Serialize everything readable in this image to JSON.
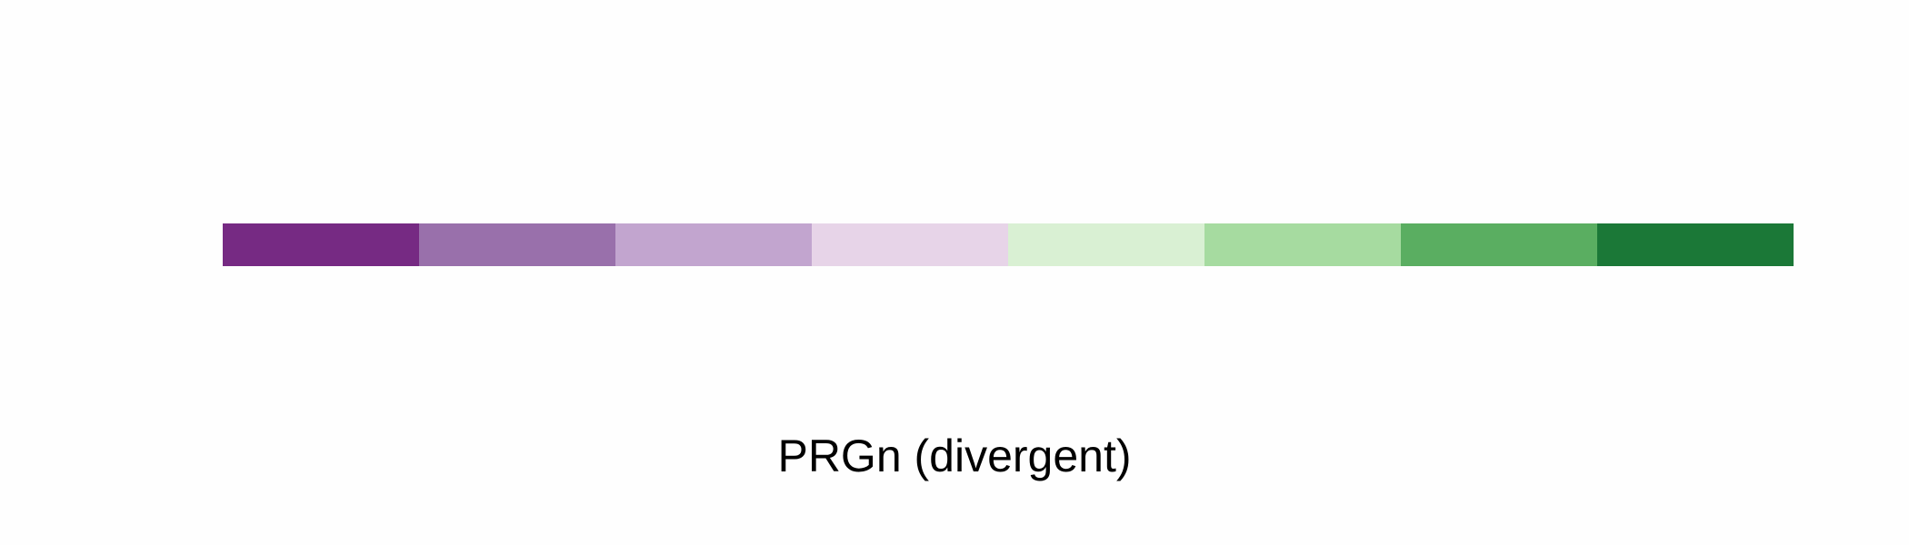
{
  "chart_data": {
    "type": "heatmap",
    "title": "PRGn (divergent)",
    "colors": [
      "#762a83",
      "#9970ab",
      "#c2a5cf",
      "#e7d4e8",
      "#d9f0d3",
      "#a6dba0",
      "#5aae61",
      "#1b7837"
    ]
  }
}
